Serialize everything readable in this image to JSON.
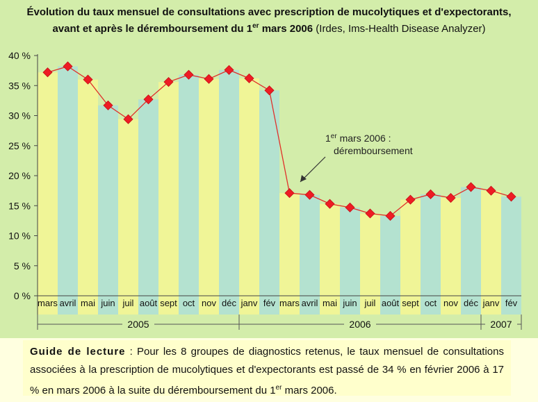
{
  "title": {
    "line1": "Évolution du taux mensuel de consultations avec prescription de mucolytiques et d'expectorants,",
    "line2_main": "avant et après le déremboursement du 1",
    "line2_sup": "er",
    "line2_end": " mars 2006",
    "source": " (Irdes, Ims-Health Disease Analyzer)"
  },
  "annotation": {
    "line1_pre": "1",
    "line1_sup": "er",
    "line1_post": " mars 2006 :",
    "line2": "déremboursement"
  },
  "reading_guide": {
    "label": "Guide de lecture",
    "text": " : Pour les 8 groupes de diagnostics retenus, le taux mensuel de consultations associées à la prescription de mucolytiques et d'expectorants est passé de 34 % en février 2006 à 17 % en mars 2006 à la suite du déremboursement du 1",
    "sup": "er",
    "text_end": " mars 2006."
  },
  "colors": {
    "background": "#d3edaa",
    "bar_yellow": "#f0f597",
    "bar_blue": "#b4e2d0",
    "line": "#e0302a",
    "marker": "#ee1c24"
  },
  "chart_data": {
    "type": "bar",
    "categories": [
      "mars",
      "avril",
      "mai",
      "juin",
      "juil",
      "août",
      "sept",
      "oct",
      "nov",
      "déc",
      "janv",
      "fév",
      "mars",
      "avril",
      "mai",
      "juin",
      "juil",
      "août",
      "sept",
      "oct",
      "nov",
      "déc",
      "janv",
      "fév"
    ],
    "years": [
      {
        "label": "2005",
        "start": 0,
        "end": 9
      },
      {
        "label": "2006",
        "start": 10,
        "end": 21
      },
      {
        "label": "2007",
        "start": 22,
        "end": 23
      }
    ],
    "values": [
      37.2,
      38.2,
      36.0,
      31.7,
      29.4,
      32.7,
      35.6,
      36.8,
      36.1,
      37.6,
      36.2,
      34.2,
      17.1,
      16.8,
      15.3,
      14.7,
      13.7,
      13.3,
      16.0,
      16.9,
      16.3,
      18.1,
      17.5,
      16.5
    ],
    "y_ticks": [
      "0 %",
      "5 %",
      "10 %",
      "15 %",
      "20 %",
      "25 %",
      "30 %",
      "35 %",
      "40 %"
    ],
    "ylim": [
      0,
      40
    ],
    "grid": false,
    "overlay": "line with diamond markers"
  }
}
